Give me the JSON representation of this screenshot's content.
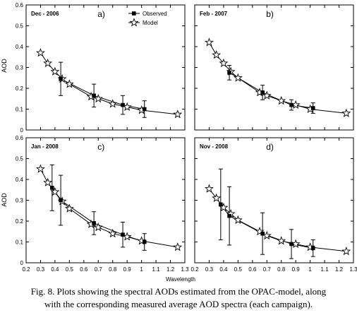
{
  "figure": {
    "xlabel": "Wavelength",
    "ylabel": "AOD",
    "xticks": [
      "0.2",
      "0.3",
      "0.4",
      "0.5",
      "0.6",
      "0.7",
      "0.8",
      "0.9",
      "1",
      "1.1",
      "1.2",
      "1.3"
    ],
    "yticks": [
      "0",
      "0.1",
      "0.2",
      "0.3",
      "0.4",
      "0.5",
      "0.6"
    ],
    "legend": {
      "observed": "Observed",
      "model": "Model"
    }
  },
  "caption": {
    "line1": "Fig. 8. Plots showing the spectral AODs estimated from the OPAC-model, along",
    "line2": "with the corresponding measured average AOD spectra (each campaign)."
  },
  "colors": {
    "line": "#000000",
    "background": "#ffffff"
  },
  "chart_data": [
    {
      "type": "line",
      "title": "Dec - 2006",
      "panel_label": "a)",
      "xlim": [
        0.2,
        1.3
      ],
      "ylim": [
        0,
        0.6
      ],
      "series": [
        {
          "name": "Observed",
          "x": [
            0.44,
            0.67,
            0.87,
            1.02
          ],
          "y": [
            0.245,
            0.165,
            0.12,
            0.1
          ],
          "error": [
            0.08,
            0.055,
            0.045,
            0.04
          ]
        },
        {
          "name": "Model",
          "x": [
            0.3,
            0.35,
            0.4,
            0.45,
            0.5,
            0.65,
            0.7,
            0.8,
            0.9,
            1.0,
            1.25
          ],
          "y": [
            0.37,
            0.32,
            0.28,
            0.245,
            0.22,
            0.16,
            0.15,
            0.125,
            0.11,
            0.095,
            0.075
          ]
        }
      ]
    },
    {
      "type": "line",
      "title": "Feb - 2007",
      "panel_label": "b)",
      "xlim": [
        0.2,
        1.3
      ],
      "ylim": [
        0,
        0.6
      ],
      "series": [
        {
          "name": "Observed",
          "x": [
            0.44,
            0.67,
            0.87,
            1.02
          ],
          "y": [
            0.275,
            0.18,
            0.12,
            0.105
          ],
          "error": [
            0.035,
            0.035,
            0.025,
            0.025
          ]
        },
        {
          "name": "Model",
          "x": [
            0.3,
            0.35,
            0.4,
            0.45,
            0.5,
            0.65,
            0.7,
            0.8,
            0.9,
            1.0,
            1.25
          ],
          "y": [
            0.42,
            0.36,
            0.32,
            0.28,
            0.25,
            0.18,
            0.165,
            0.14,
            0.12,
            0.1,
            0.08
          ]
        }
      ]
    },
    {
      "type": "line",
      "title": "Jan - 2008",
      "panel_label": "c)",
      "xlim": [
        0.2,
        1.3
      ],
      "ylim": [
        0,
        0.6
      ],
      "series": [
        {
          "name": "Observed",
          "x": [
            0.38,
            0.44,
            0.67,
            0.87,
            1.02
          ],
          "y": [
            0.36,
            0.3,
            0.19,
            0.135,
            0.1
          ],
          "error": [
            0.11,
            0.12,
            0.055,
            0.06,
            0.04
          ]
        },
        {
          "name": "Model",
          "x": [
            0.3,
            0.35,
            0.4,
            0.45,
            0.5,
            0.65,
            0.7,
            0.8,
            0.9,
            1.0,
            1.25
          ],
          "y": [
            0.45,
            0.385,
            0.34,
            0.295,
            0.26,
            0.185,
            0.17,
            0.14,
            0.125,
            0.105,
            0.075
          ]
        }
      ]
    },
    {
      "type": "line",
      "title": "Nov - 2008",
      "panel_label": "d)",
      "xlim": [
        0.2,
        1.3
      ],
      "ylim": [
        0,
        0.6
      ],
      "series": [
        {
          "name": "Observed",
          "x": [
            0.38,
            0.44,
            0.67,
            0.87,
            1.02
          ],
          "y": [
            0.28,
            0.225,
            0.14,
            0.09,
            0.07
          ],
          "error": [
            0.17,
            0.14,
            0.1,
            0.07,
            0.04
          ]
        },
        {
          "name": "Model",
          "x": [
            0.3,
            0.35,
            0.4,
            0.45,
            0.5,
            0.65,
            0.7,
            0.8,
            0.9,
            1.0,
            1.25
          ],
          "y": [
            0.355,
            0.31,
            0.265,
            0.235,
            0.205,
            0.15,
            0.13,
            0.105,
            0.09,
            0.075,
            0.055
          ]
        }
      ]
    }
  ]
}
